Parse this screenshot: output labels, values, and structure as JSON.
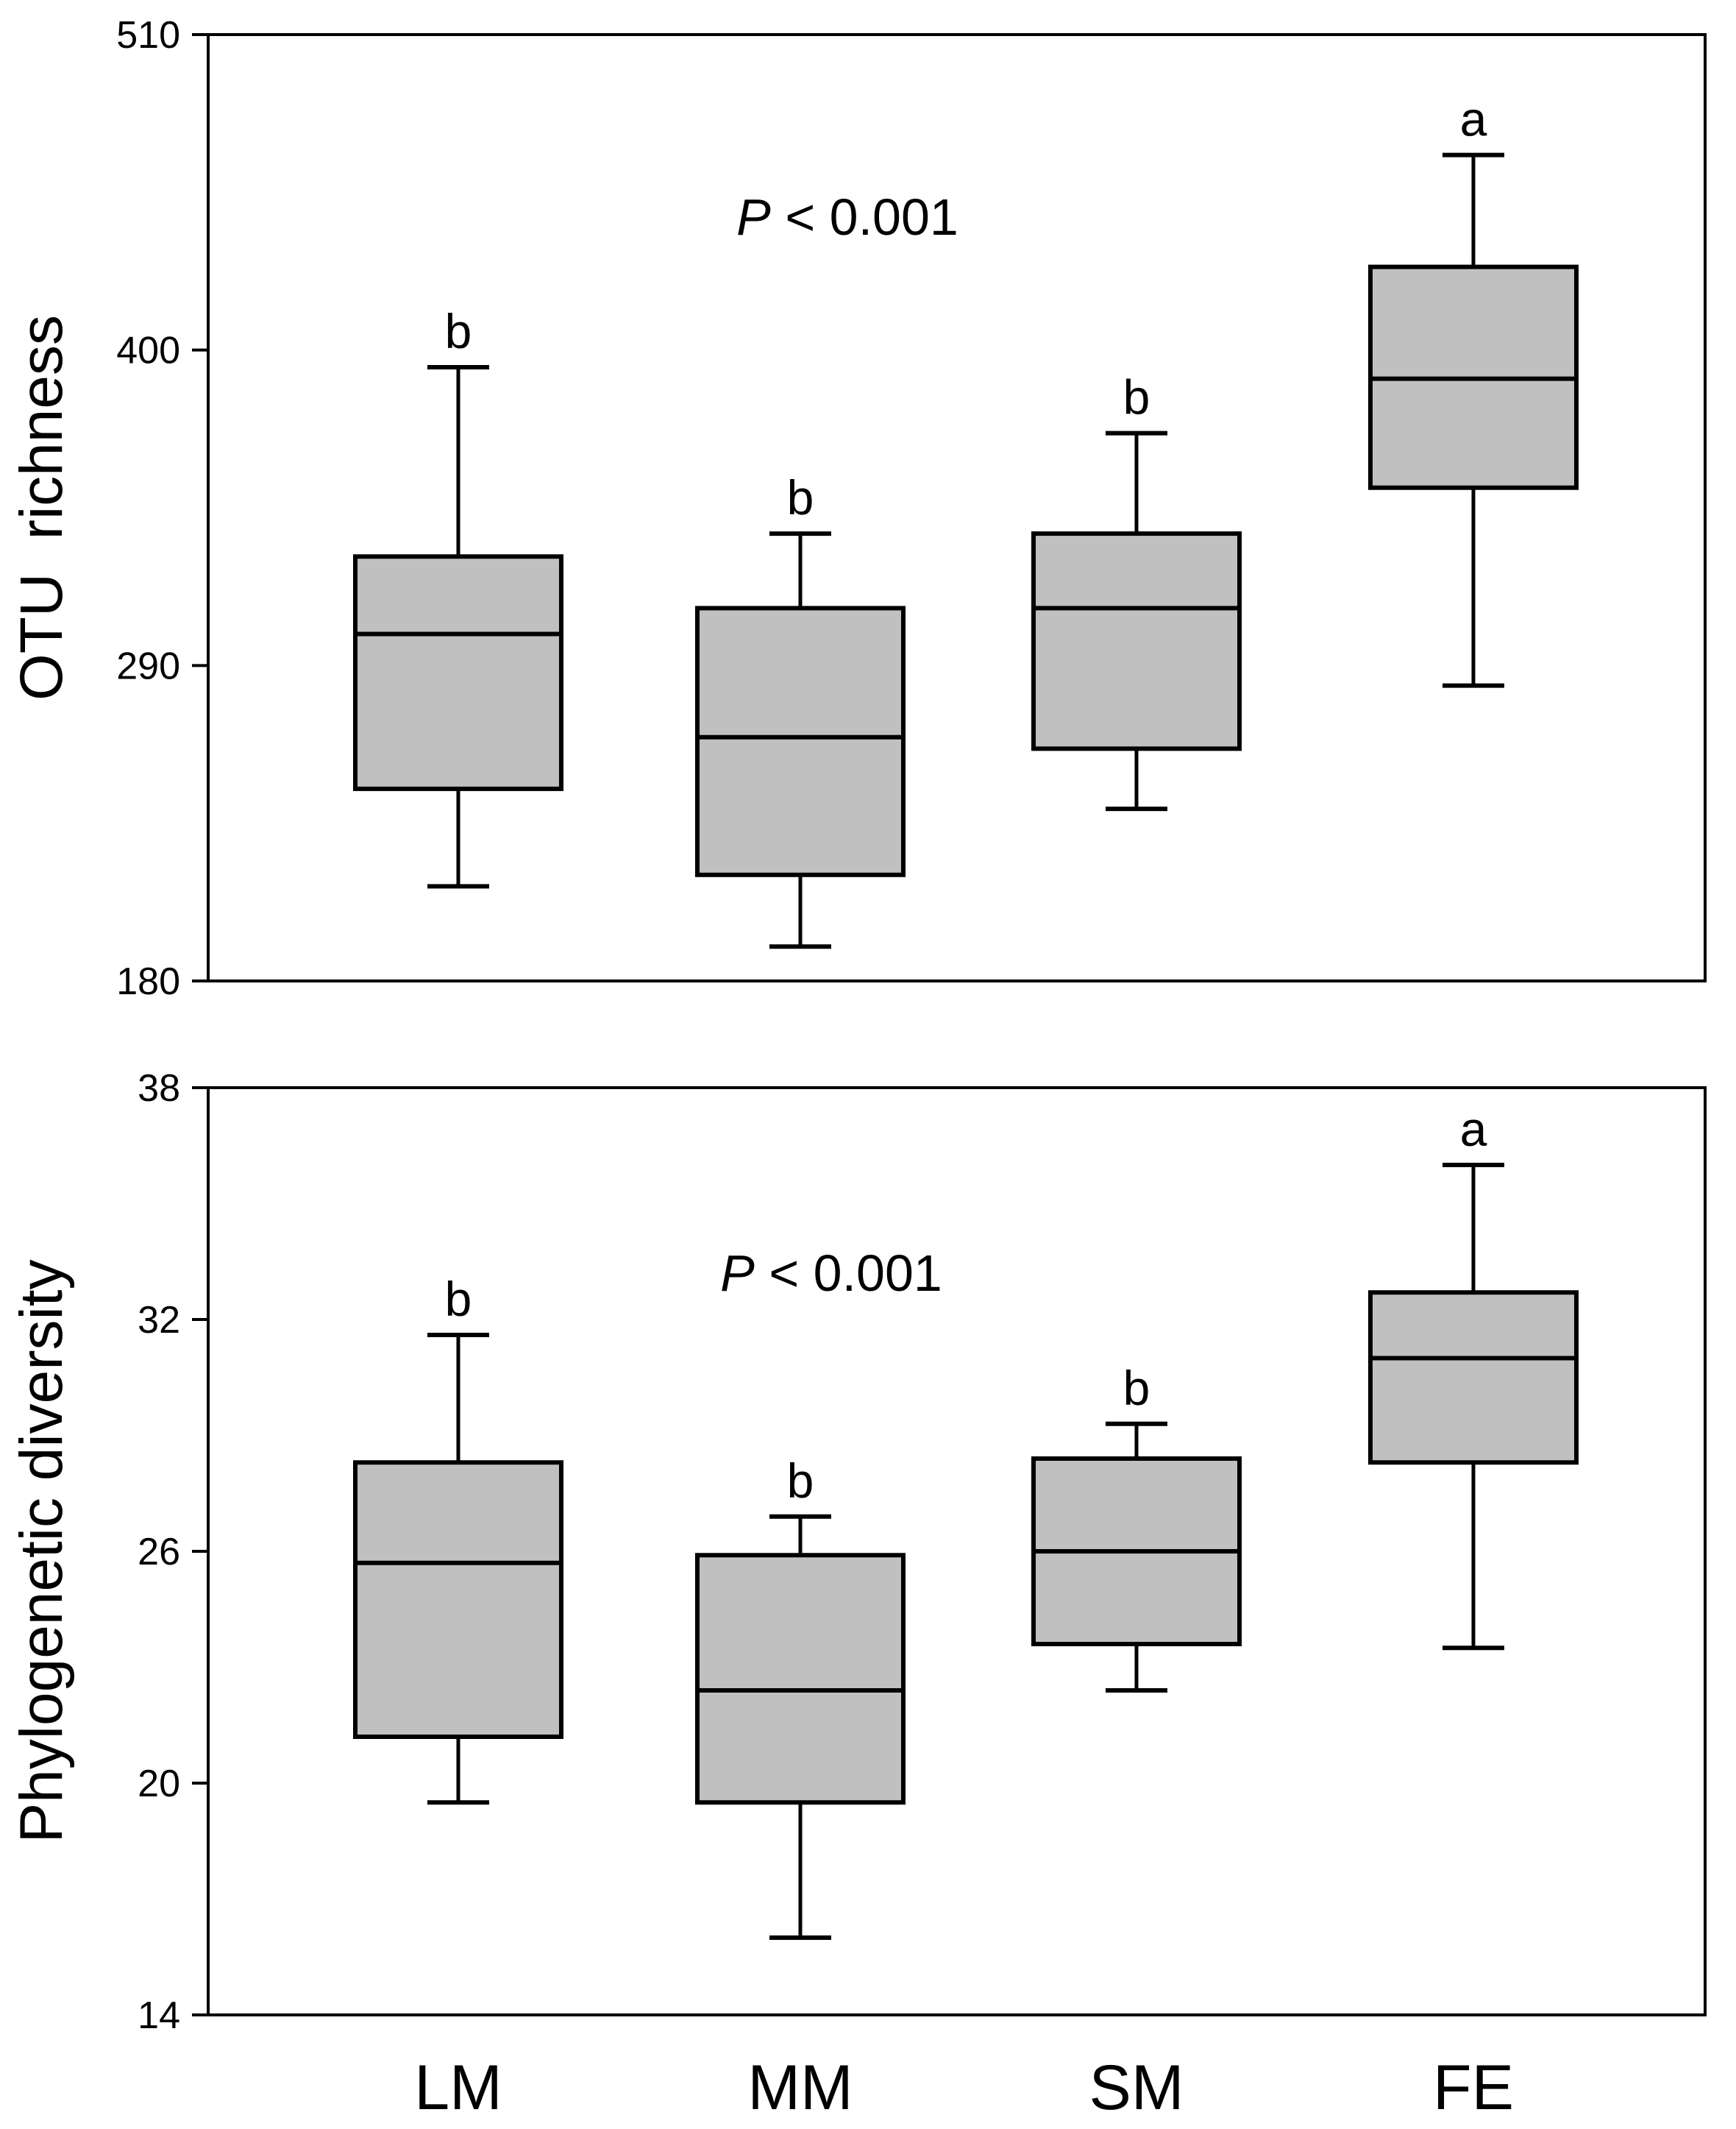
{
  "chart_data": [
    {
      "type": "box",
      "panel": "top",
      "ylabel": "OTU  richness",
      "ylim": [
        180,
        510
      ],
      "yticks": [
        180,
        290,
        400,
        510
      ],
      "categories": [
        "LM",
        "MM",
        "SM",
        "FE"
      ],
      "p_value": {
        "italic": "P",
        "rest": " < 0.001"
      },
      "boxes": [
        {
          "category": "LM",
          "whisker_low": 213,
          "q1": 247,
          "median": 301,
          "q3": 328,
          "whisker_high": 394,
          "letter": "b"
        },
        {
          "category": "MM",
          "whisker_low": 192,
          "q1": 217,
          "median": 265,
          "q3": 310,
          "whisker_high": 336,
          "letter": "b"
        },
        {
          "category": "SM",
          "whisker_low": 240,
          "q1": 261,
          "median": 310,
          "q3": 336,
          "whisker_high": 371,
          "letter": "b"
        },
        {
          "category": "FE",
          "whisker_low": 283,
          "q1": 352,
          "median": 390,
          "q3": 429,
          "whisker_high": 468,
          "letter": "a"
        }
      ]
    },
    {
      "type": "box",
      "panel": "bottom",
      "ylabel": "Phylogenetic diversity",
      "ylim": [
        14,
        38
      ],
      "yticks": [
        14,
        20,
        26,
        32,
        38
      ],
      "categories": [
        "LM",
        "MM",
        "SM",
        "FE"
      ],
      "p_value": {
        "italic": "P",
        "rest": " < 0.001"
      },
      "boxes": [
        {
          "category": "LM",
          "whisker_low": 19.5,
          "q1": 21.2,
          "median": 25.7,
          "q3": 28.3,
          "whisker_high": 31.6,
          "letter": "b"
        },
        {
          "category": "MM",
          "whisker_low": 16.0,
          "q1": 19.5,
          "median": 22.4,
          "q3": 25.9,
          "whisker_high": 26.9,
          "letter": "b"
        },
        {
          "category": "SM",
          "whisker_low": 22.4,
          "q1": 23.6,
          "median": 26.0,
          "q3": 28.4,
          "whisker_high": 29.3,
          "letter": "b"
        },
        {
          "category": "FE",
          "whisker_low": 23.5,
          "q1": 28.3,
          "median": 31.0,
          "q3": 32.7,
          "whisker_high": 36.0,
          "letter": "a"
        }
      ]
    }
  ],
  "colors": {
    "box_fill": "#c0c0c0",
    "stroke": "#000000",
    "background": "#ffffff"
  }
}
